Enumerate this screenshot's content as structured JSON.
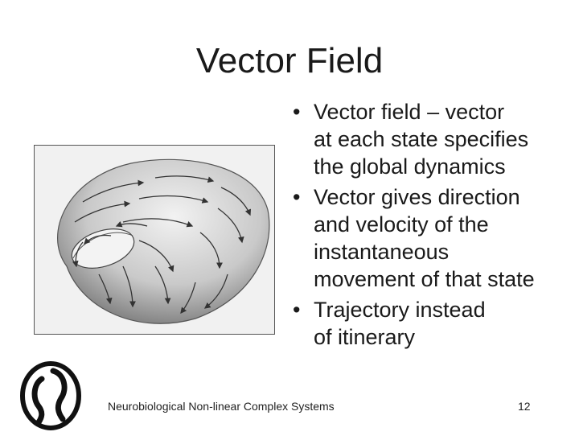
{
  "slide": {
    "title": "Vector Field",
    "bullets": [
      {
        "lines": [
          "Vector field – vector",
          "at each state specifies",
          "the global dynamics"
        ]
      },
      {
        "lines": [
          "Vector gives direction",
          "and velocity of the",
          "instantaneous",
          "movement of that state"
        ]
      },
      {
        "lines": [
          "Trajectory instead",
          "of itinerary"
        ]
      }
    ],
    "bullet_glyph": "•",
    "footer": "Neurobiological Non-linear Complex Systems",
    "page_number": "12",
    "figure": {
      "icon": "torus-vector-field-icon"
    },
    "logo": {
      "icon": "institution-logo-icon"
    }
  }
}
